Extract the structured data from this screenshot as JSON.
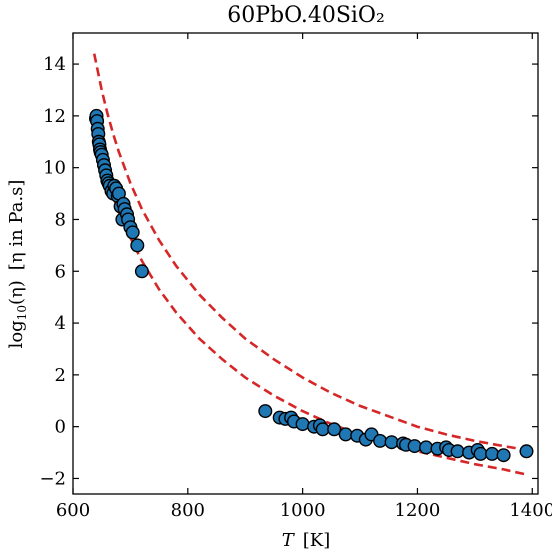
{
  "chart_data": {
    "type": "scatter",
    "title": "60PbO.40SiO₂",
    "xlabel": {
      "var": "T",
      "unit": "[K]"
    },
    "ylabel": {
      "prefix": "log",
      "sub": "10",
      "arg": "(η)",
      "bracket": "[η in Pa.s]"
    },
    "xlim": [
      600,
      1410
    ],
    "ylim": [
      -2.6,
      15.2
    ],
    "xticks": [
      600,
      800,
      1000,
      1200,
      1400
    ],
    "yticks": [
      -2,
      0,
      2,
      4,
      6,
      8,
      10,
      12,
      14
    ],
    "ytick_labels": [
      "−2",
      "0",
      "2",
      "4",
      "6",
      "8",
      "10",
      "12",
      "14"
    ],
    "grid": false,
    "colors": {
      "points": "#1f77b4",
      "point_edge": "#000000",
      "fit": "#d62728"
    },
    "series": [
      {
        "kind": "points",
        "x": [
          640,
          641,
          642,
          643,
          644,
          645,
          646,
          647,
          648,
          650,
          652,
          654,
          656,
          658,
          660,
          662,
          664,
          667,
          670,
          672,
          675,
          678,
          680,
          683,
          686,
          688,
          690,
          694,
          696,
          700,
          704,
          712,
          720,
          935,
          960,
          970,
          980,
          985,
          1000,
          1020,
          1030,
          1035,
          1055,
          1075,
          1095,
          1110,
          1120,
          1135,
          1155,
          1175,
          1180,
          1195,
          1215,
          1235,
          1250,
          1255,
          1270,
          1290,
          1305,
          1310,
          1330,
          1350,
          1390
        ],
        "y": [
          11.9,
          12.0,
          11.8,
          11.5,
          11.3,
          11.0,
          10.9,
          10.7,
          10.6,
          10.5,
          10.3,
          10.1,
          9.9,
          9.7,
          9.5,
          9.4,
          9.3,
          9.1,
          9.0,
          9.3,
          9.2,
          8.9,
          9.0,
          8.5,
          8.0,
          8.6,
          8.4,
          8.2,
          8.0,
          7.7,
          7.5,
          7.0,
          6.0,
          0.6,
          0.35,
          0.3,
          0.35,
          0.2,
          0.1,
          0.0,
          0.05,
          -0.1,
          -0.1,
          -0.3,
          -0.35,
          -0.5,
          -0.3,
          -0.55,
          -0.6,
          -0.65,
          -0.7,
          -0.75,
          -0.8,
          -0.85,
          -0.8,
          -0.9,
          -0.95,
          -1.0,
          -0.9,
          -1.05,
          -1.05,
          -1.1,
          -0.95
        ]
      },
      {
        "kind": "fit-upper",
        "x": [
          637,
          650,
          660,
          670,
          680,
          700,
          720,
          750,
          780,
          820,
          860,
          900,
          950,
          1000,
          1050,
          1100,
          1150,
          1200,
          1250,
          1300,
          1350,
          1390
        ],
        "y": [
          14.4,
          13.0,
          12.1,
          11.3,
          10.6,
          9.4,
          8.4,
          7.2,
          6.2,
          5.1,
          4.2,
          3.4,
          2.6,
          1.9,
          1.3,
          0.8,
          0.4,
          0.0,
          -0.3,
          -0.55,
          -0.75,
          -0.9
        ]
      },
      {
        "kind": "fit-lower",
        "x": [
          637,
          650,
          660,
          670,
          680,
          700,
          720,
          750,
          780,
          820,
          860,
          900,
          950,
          1000,
          1050,
          1100,
          1150,
          1200,
          1250,
          1300,
          1350,
          1390
        ],
        "y": [
          11.0,
          10.2,
          9.5,
          8.9,
          8.3,
          7.3,
          6.4,
          5.3,
          4.4,
          3.4,
          2.6,
          1.9,
          1.2,
          0.6,
          0.1,
          -0.3,
          -0.65,
          -0.95,
          -1.2,
          -1.45,
          -1.65,
          -1.85
        ]
      }
    ]
  }
}
